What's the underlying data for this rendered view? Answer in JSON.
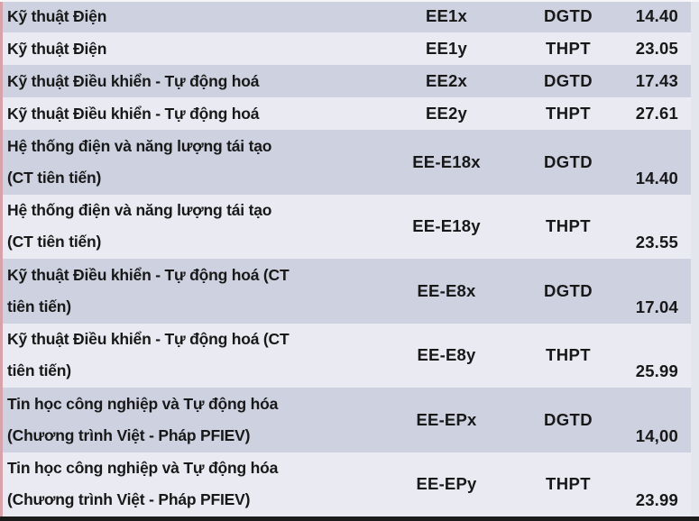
{
  "page": {
    "left_border_color": "#d8a2aa",
    "row_dark_color": "#cdd1e0",
    "row_light_color": "#e9eaf2",
    "bottom_strip_color": "#1b1b1b",
    "text_color": "#181818"
  },
  "table": {
    "columns": [
      "program-name",
      "program-code",
      "admission-method",
      "score"
    ],
    "rows": [
      {
        "shade": "dark",
        "tall": false,
        "name_lines": [
          "Kỹ thuật Điện"
        ],
        "code": "EE1x",
        "method": "DGTD",
        "score": "14.40"
      },
      {
        "shade": "light",
        "tall": false,
        "name_lines": [
          "Kỹ thuật Điện"
        ],
        "code": "EE1y",
        "method": "THPT",
        "score": "23.05"
      },
      {
        "shade": "dark",
        "tall": false,
        "name_lines": [
          "Kỹ thuật Điều khiển - Tự động hoá"
        ],
        "code": "EE2x",
        "method": "DGTD",
        "score": "17.43"
      },
      {
        "shade": "light",
        "tall": false,
        "name_lines": [
          "Kỹ thuật Điều khiển - Tự động hoá"
        ],
        "code": "EE2y",
        "method": "THPT",
        "score": "27.61"
      },
      {
        "shade": "dark",
        "tall": true,
        "name_lines": [
          "Hệ thống điện và năng lượng tái tạo",
          "(CT tiên tiến)"
        ],
        "code": "EE-E18x",
        "method": "DGTD",
        "score": "14.40"
      },
      {
        "shade": "light",
        "tall": true,
        "name_lines": [
          "Hệ thống điện và năng lượng tái tạo",
          "(CT tiên tiến)"
        ],
        "code": "EE-E18y",
        "method": "THPT",
        "score": "23.55"
      },
      {
        "shade": "dark",
        "tall": true,
        "name_lines": [
          "Kỹ thuật Điều khiển - Tự động hoá (CT",
          "tiên tiến)"
        ],
        "code": "EE-E8x",
        "method": "DGTD",
        "score": "17.04"
      },
      {
        "shade": "light",
        "tall": true,
        "name_lines": [
          "Kỹ thuật Điều khiển - Tự động hoá (CT",
          "tiên tiến)"
        ],
        "code": "EE-E8y",
        "method": "THPT",
        "score": "25.99"
      },
      {
        "shade": "dark",
        "tall": true,
        "name_lines": [
          "Tin học công nghiệp và Tự động hóa",
          "(Chương trình Việt - Pháp PFIEV)"
        ],
        "code": "EE-EPx",
        "method": "DGTD",
        "score": "14,00"
      },
      {
        "shade": "light",
        "tall": true,
        "name_lines": [
          "Tin học công nghiệp và Tự động hóa",
          "(Chương trình Việt - Pháp PFIEV)"
        ],
        "code": "EE-EPy",
        "method": "THPT",
        "score": "23.99"
      }
    ]
  }
}
